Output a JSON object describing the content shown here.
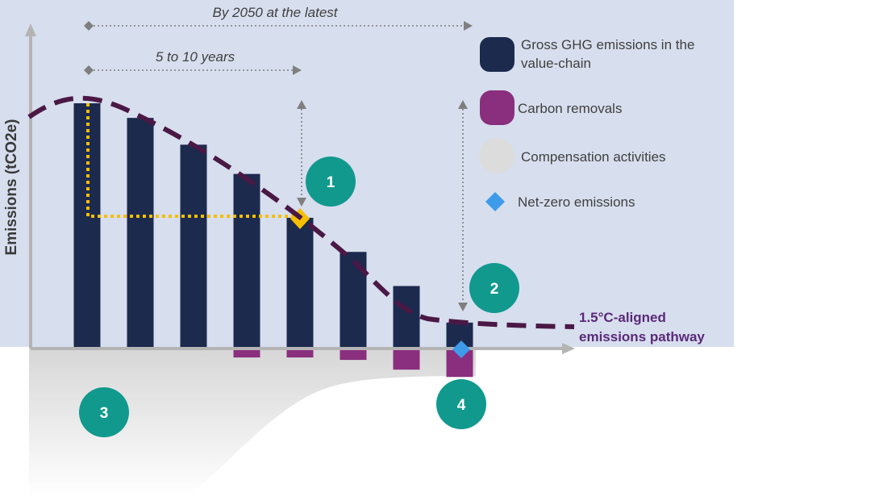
{
  "chart_data": {
    "type": "bar",
    "title": "",
    "ylabel": "Emissions (tCO2e)",
    "xlabel": "",
    "categories": [
      "",
      "",
      "",
      "",
      "",
      "",
      "",
      ""
    ],
    "ylim": [
      -1.1,
      10
    ],
    "series": [
      {
        "name": "Gross GHG emissions in the value-chain",
        "color": "#1c2a4e",
        "values": [
          10,
          9.4,
          8.3,
          7.1,
          5.3,
          3.9,
          2.5,
          1.0
        ]
      },
      {
        "name": "Carbon removals",
        "color": "#8a2f7e",
        "values": [
          0,
          0,
          0,
          -0.3,
          -0.3,
          -0.4,
          -0.8,
          -1.1
        ]
      }
    ],
    "pathway": {
      "label_line1": "1.5°C-aligned",
      "label_line2": "emissions pathway",
      "color": "#4a1845",
      "values": [
        10.2,
        9.4,
        8.2,
        7.0,
        5.3,
        3.0,
        1.2,
        1.0
      ]
    },
    "grid": false
  },
  "annotations": {
    "span_long": "By 2050 at the latest",
    "span_short": "5 to 10 years",
    "markers": [
      "1",
      "2",
      "3",
      "4"
    ]
  },
  "legend": {
    "placement": "top-right",
    "items": [
      {
        "label_line1": "Gross GHG emissions in the",
        "label_line2": "value-chain",
        "color": "#1c2a4e",
        "shape": "rounded-square"
      },
      {
        "label_line1": "Carbon removals",
        "label_line2": "",
        "color": "#8a2f7e",
        "shape": "rounded-square"
      },
      {
        "label_line1": "Compensation activities",
        "label_line2": "",
        "color": "#dcdcdc",
        "shape": "circle"
      },
      {
        "label_line1": "Net-zero emissions",
        "label_line2": "",
        "color": "#3d9be9",
        "shape": "diamond"
      }
    ]
  },
  "colors": {
    "panel_bg": "#d7deee",
    "axis": "#b4b4b4",
    "marker_teal": "#11998e",
    "target_yellow": "#f5bf00",
    "netzero_blue": "#3d9be9",
    "arrow_gray": "#7f7f7f"
  }
}
